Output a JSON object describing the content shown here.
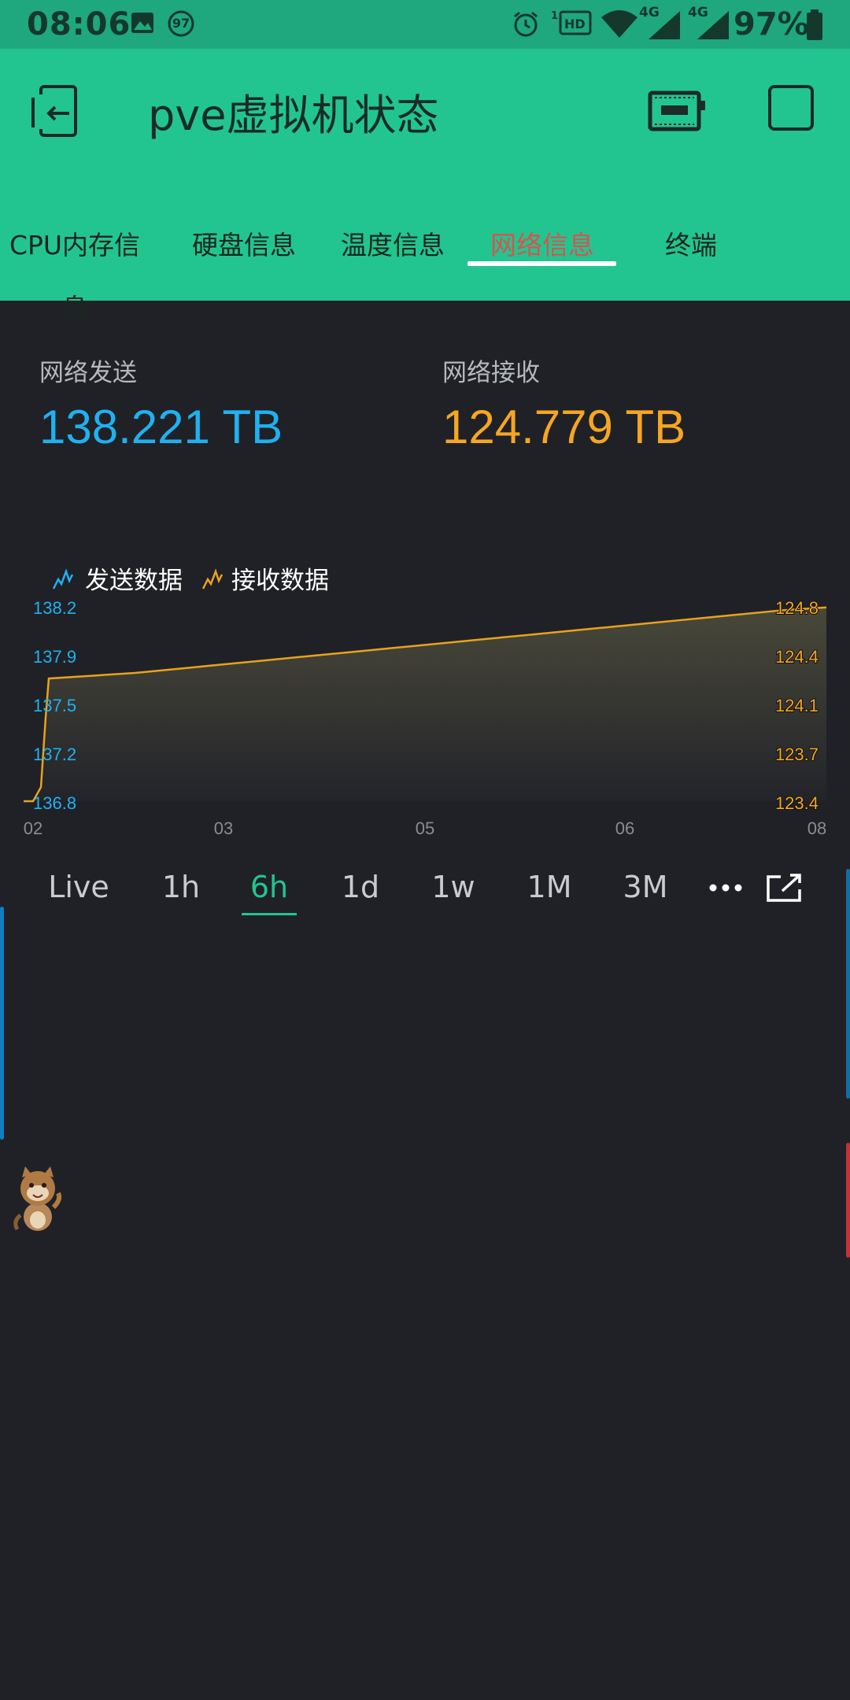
{
  "status_bar": {
    "time": "08:06",
    "notification_badge": "97",
    "network_labels": [
      "4G",
      "4G"
    ],
    "battery": "97%",
    "icons": [
      "image-icon",
      "badge-icon",
      "alarm-icon",
      "hd-icon",
      "wifi-icon",
      "signal-icon",
      "signal-icon",
      "battery-icon"
    ]
  },
  "app_bar": {
    "title": "pve虚拟机状态",
    "icons": [
      "exit-icon",
      "device-icon",
      "square-icon"
    ]
  },
  "tabs": [
    {
      "label": "CPU内存信息",
      "active": false
    },
    {
      "label": "硬盘信息",
      "active": false
    },
    {
      "label": "温度信息",
      "active": false
    },
    {
      "label": "网络信息",
      "active": true
    },
    {
      "label": "终端",
      "active": false
    }
  ],
  "values": {
    "send": {
      "label": "网络发送",
      "value": "138.221 TB",
      "color": "#1fb1f0"
    },
    "recv": {
      "label": "网络接收",
      "value": "124.779 TB",
      "color": "#f5a623"
    }
  },
  "chart_data": {
    "type": "area",
    "legend": [
      "发送数据",
      "接收数据"
    ],
    "x_ticks": [
      "02",
      "03",
      "05",
      "06",
      "08"
    ],
    "y_left_ticks": [
      "138.2",
      "137.9",
      "137.5",
      "137.2",
      "136.8"
    ],
    "y_right_ticks": [
      "124.8",
      "124.4",
      "124.1",
      "123.7",
      "123.4"
    ],
    "y_left_range": [
      136.8,
      138.2
    ],
    "y_right_range": [
      123.4,
      124.8
    ],
    "series": [
      {
        "name": "接收数据",
        "axis": "right",
        "color": "#e8a21e",
        "values": [
          123.4,
          123.4,
          123.5,
          124.0,
          124.28,
          124.3,
          124.32,
          124.35,
          124.38,
          124.41,
          124.44,
          124.47,
          124.5,
          124.53,
          124.56,
          124.59,
          124.62,
          124.65,
          124.68,
          124.71,
          124.74,
          124.77,
          124.79
        ]
      }
    ]
  },
  "ranges": [
    {
      "label": "Live",
      "active": false
    },
    {
      "label": "1h",
      "active": false
    },
    {
      "label": "6h",
      "active": true
    },
    {
      "label": "1d",
      "active": false
    },
    {
      "label": "1w",
      "active": false
    },
    {
      "label": "1M",
      "active": false
    },
    {
      "label": "3M",
      "active": false
    }
  ],
  "range_more_icon": "more-icon",
  "range_expand_icon": "expand-icon"
}
